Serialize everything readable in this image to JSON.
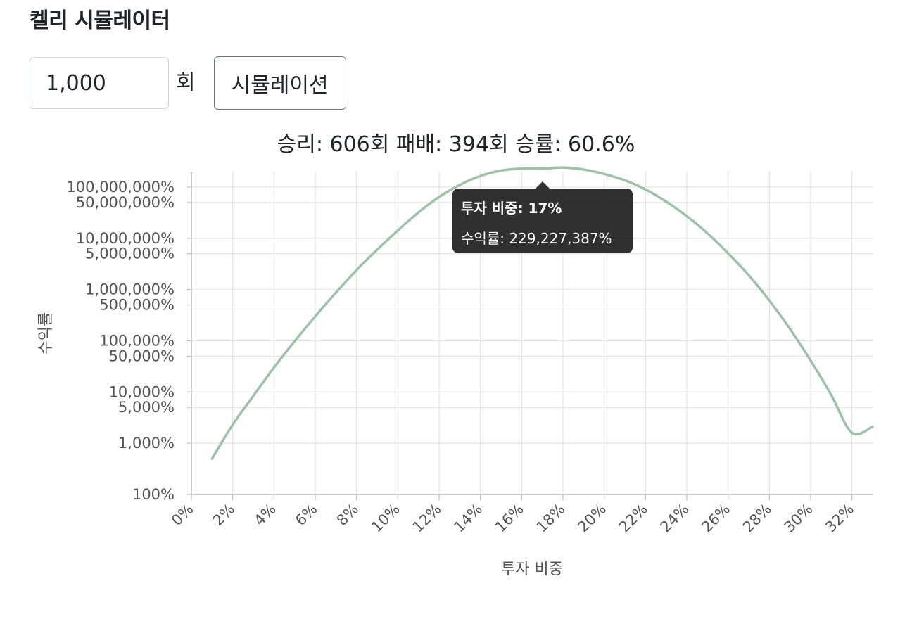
{
  "header": {
    "title": "켈리 시뮬레이터"
  },
  "controls": {
    "trials_value": "1,000",
    "trials_unit": "회",
    "simulate_label": "시뮬레이션"
  },
  "summary": {
    "wins_label": "승리:",
    "wins_value": "606회",
    "losses_label": "패배:",
    "losses_value": "394회",
    "rate_label": "승률:",
    "rate_value": "60.6%"
  },
  "tooltip": {
    "title_label": "투자 비중:",
    "title_value": "17%",
    "body_label": "수익률:",
    "body_value": "229,227,387%"
  },
  "chart_data": {
    "type": "line",
    "xlabel": "투자 비중",
    "ylabel": "수익률",
    "y_scale": "log",
    "xlim": [
      0,
      33
    ],
    "ylim": [
      100,
      200000000
    ],
    "x_ticks": [
      0,
      2,
      4,
      6,
      8,
      10,
      12,
      14,
      16,
      18,
      20,
      22,
      24,
      26,
      28,
      30,
      32
    ],
    "x_tick_labels": [
      "0%",
      "2%",
      "4%",
      "6%",
      "8%",
      "10%",
      "12%",
      "14%",
      "16%",
      "18%",
      "20%",
      "22%",
      "24%",
      "26%",
      "28%",
      "30%",
      "32%"
    ],
    "y_ticks": [
      100,
      1000,
      5000,
      10000,
      50000,
      100000,
      500000,
      1000000,
      5000000,
      10000000,
      50000000,
      100000000
    ],
    "y_tick_labels": [
      "100%",
      "1,000%",
      "5,000%",
      "10,000%",
      "50,000%",
      "100,000%",
      "500,000%",
      "1,000,000%",
      "5,000,000%",
      "10,000,000%",
      "50,000,000%",
      "100,000,000%"
    ],
    "grid": true,
    "color": "#9cc3a8",
    "x": [
      1,
      2,
      3,
      4,
      5,
      6,
      7,
      8,
      9,
      10,
      11,
      12,
      13,
      14,
      15,
      16,
      17,
      18,
      19,
      20,
      21,
      22,
      23,
      24,
      25,
      26,
      27,
      28,
      29,
      30,
      31,
      32,
      33
    ],
    "y": [
      500,
      2300,
      8400,
      30000,
      98000,
      300000,
      870000,
      2400000,
      6000000,
      14200000,
      32000000,
      64000000,
      110000000,
      165000000,
      210000000,
      230000000,
      229227387,
      240000000,
      220000000,
      180000000,
      135000000,
      90000000,
      52000000,
      27000000,
      12500000,
      5100000,
      1900000,
      610000,
      170000,
      41000,
      8700,
      1600,
      2100
    ]
  }
}
